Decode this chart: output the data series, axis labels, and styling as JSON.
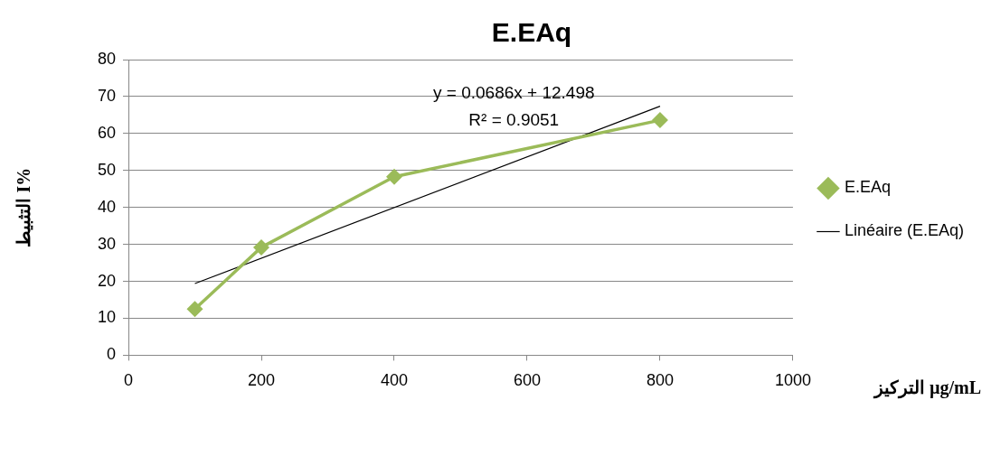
{
  "chart_data": {
    "type": "line",
    "title": "E.EAq",
    "xlabel": "التركيز µg/mL",
    "ylabel": "التثبيط I%",
    "x": [
      100,
      200,
      400,
      800
    ],
    "series": [
      {
        "name": "E.EAq",
        "color": "#9bbb59",
        "values": [
          12.5,
          29.2,
          48.3,
          63.6
        ],
        "marker": "diamond"
      },
      {
        "name": "Linéaire (E.EAq)",
        "type": "line",
        "color": "#000000",
        "x": [
          100,
          800
        ],
        "values": [
          19.4,
          67.4
        ],
        "marker": "none"
      }
    ],
    "xlim": [
      0,
      1000
    ],
    "xticks": [
      0,
      200,
      400,
      600,
      800,
      1000
    ],
    "ylim": [
      0,
      80
    ],
    "yticks": [
      0,
      10,
      20,
      30,
      40,
      50,
      60,
      70,
      80
    ],
    "grid": "y",
    "legend": "right",
    "line_style": "solid",
    "annotations": [
      "y = 0.0686x + 12.498",
      "R² = 0.9051"
    ]
  }
}
